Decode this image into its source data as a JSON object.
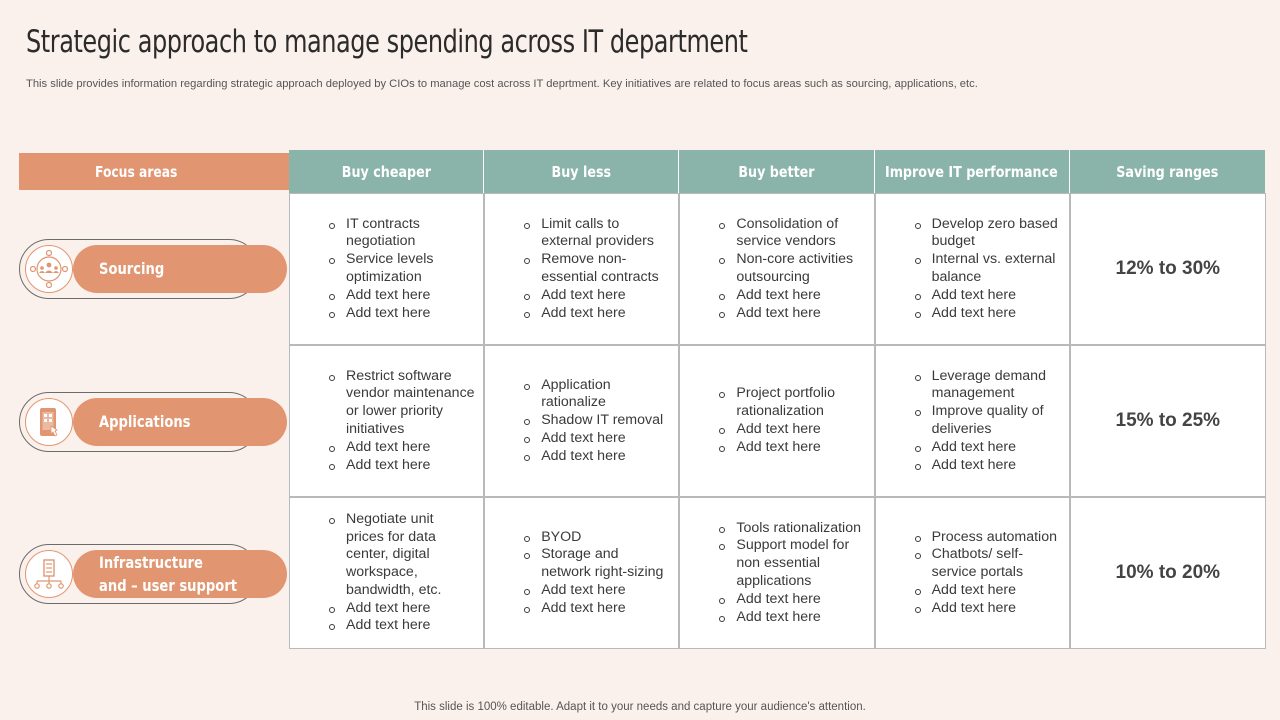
{
  "title": "Strategic approach to manage spending across IT department",
  "subtitle": "This slide provides information regarding strategic approach deployed by CIOs to manage cost across IT deprtment. Key initiatives are related to focus areas such as sourcing, applications, etc.",
  "footer": "This slide is 100% editable. Adapt it to your needs and capture your audience's attention.",
  "colors": {
    "accent": "#e19671",
    "header": "#8ab4aa",
    "background": "#fbf1ec"
  },
  "focus_header": "Focus areas",
  "columns": [
    "Buy cheaper",
    "Buy less",
    "Buy better",
    "Improve IT performance",
    "Saving ranges"
  ],
  "rows": [
    {
      "focus": {
        "label_line1": "Sourcing",
        "label_line2": "",
        "icon": "team-network-icon"
      },
      "cells": [
        [
          "IT contracts negotiation",
          "Service levels optimization",
          "Add text here",
          "Add text here"
        ],
        [
          "Limit calls to external providers",
          "Remove non-essential contracts",
          "Add text here",
          "Add text here"
        ],
        [
          "Consolidation of service vendors",
          "Non-core activities outsourcing",
          "Add text here",
          "Add text here"
        ],
        [
          "Develop zero based budget",
          "Internal vs. external balance",
          "Add text here",
          "Add text here"
        ]
      ],
      "saving": "12% to 30%"
    },
    {
      "focus": {
        "label_line1": "Applications",
        "label_line2": "",
        "icon": "mobile-app-icon"
      },
      "cells": [
        [
          "Restrict software vendor maintenance or lower priority initiatives",
          "Add text here",
          "Add text here"
        ],
        [
          "Application rationalize",
          "Shadow IT removal",
          "Add text here",
          "Add text here"
        ],
        [
          "Project portfolio rationalization",
          "Add text here",
          "Add text here"
        ],
        [
          "Leverage demand management",
          "Improve quality of deliveries",
          "Add text here",
          "Add text here"
        ]
      ],
      "saving": "15% to 25%"
    },
    {
      "focus": {
        "label_line1": "Infrastructure",
        "label_line2": "and – user support",
        "icon": "infrastructure-icon"
      },
      "cells": [
        [
          "Negotiate unit prices for data center, digital workspace, bandwidth, etc.",
          "Add text here",
          "Add text here"
        ],
        [
          "BYOD",
          "Storage and network right-sizing",
          "Add text here",
          "Add text here"
        ],
        [
          "Tools rationalization",
          "Support model for non essential applications",
          "Add text here",
          "Add text here"
        ],
        [
          "Process automation",
          "Chatbots/ self-service portals",
          "Add text here",
          "Add text here"
        ]
      ],
      "saving": "10% to 20%"
    }
  ]
}
